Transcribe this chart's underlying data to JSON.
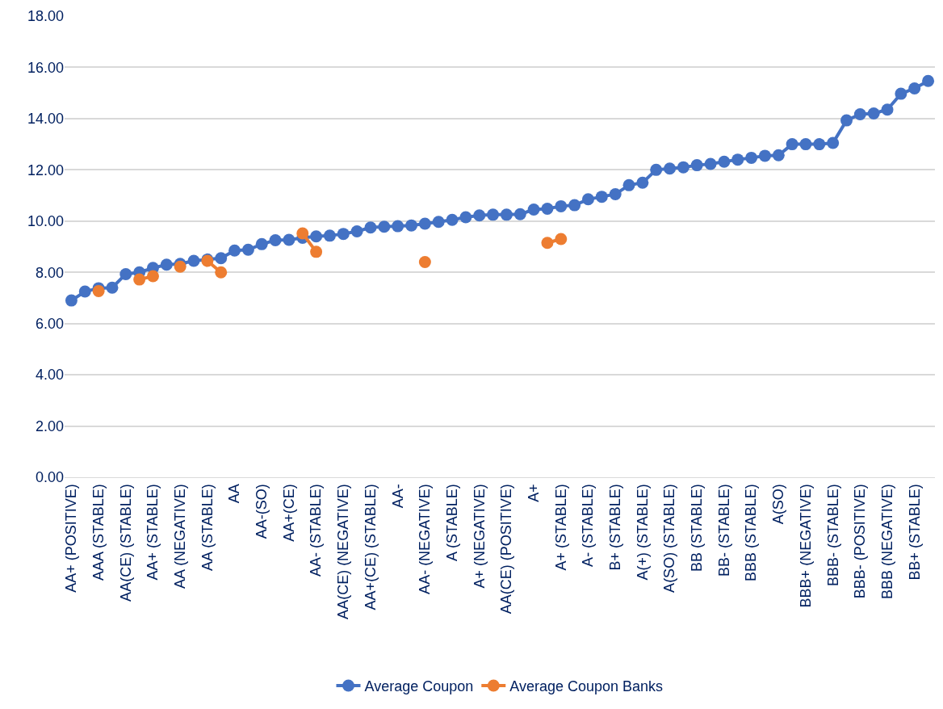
{
  "chart_data": {
    "type": "line",
    "categories": [
      "AA+ (POSITIVE)",
      null,
      "AAA (STABLE)",
      null,
      "AA(CE) (STABLE)",
      null,
      "AA+ (STABLE)",
      null,
      "AA (NEGATIVE)",
      null,
      "AA (STABLE)",
      null,
      "AA",
      null,
      "AA-(SO)",
      null,
      "AA+(CE)",
      null,
      "AA- (STABLE)",
      null,
      "AA(CE) (NEGATIVE)",
      null,
      "AA+(CE) (STABLE)",
      null,
      "AA-",
      null,
      "AA- (NEGATIVE)",
      null,
      "A (STABLE)",
      null,
      "A+ (NEGATIVE)",
      null,
      "AA(CE) (POSITIVE)",
      null,
      "A+",
      null,
      "A+ (STABLE)",
      null,
      "A- (STABLE)",
      null,
      "B+ (STABLE)",
      null,
      "A(+) (STABLE)",
      null,
      "A(SO) (STABLE)",
      null,
      "BB (STABLE)",
      null,
      "BB- (STABLE)",
      null,
      "BBB (STABLE)",
      null,
      "A(SO)",
      null,
      "BBB+ (NEGATIVE)",
      null,
      "BBB- (STABLE)",
      null,
      "BBB- (POSITIVE)",
      null,
      "BBB (NEGATIVE)",
      null,
      "BB+ (STABLE)",
      null
    ],
    "series": [
      {
        "name": "Average Coupon",
        "color": "#4472c4",
        "values": [
          6.9,
          7.25,
          7.38,
          7.4,
          7.93,
          8.0,
          8.17,
          8.3,
          8.33,
          8.45,
          8.5,
          8.55,
          8.85,
          8.88,
          9.1,
          9.25,
          9.27,
          9.35,
          9.4,
          9.43,
          9.5,
          9.6,
          9.75,
          9.78,
          9.8,
          9.83,
          9.9,
          9.97,
          10.05,
          10.15,
          10.22,
          10.25,
          10.25,
          10.27,
          10.45,
          10.48,
          10.58,
          10.62,
          10.85,
          10.95,
          11.05,
          11.4,
          11.5,
          12.0,
          12.05,
          12.1,
          12.18,
          12.23,
          12.32,
          12.4,
          12.47,
          12.55,
          12.57,
          13.0,
          13.0,
          13.0,
          13.05,
          13.93,
          14.17,
          14.2,
          14.35,
          14.97,
          15.18,
          15.47
        ]
      },
      {
        "name": "Average Coupon Banks",
        "color": "#ed7d31",
        "values": [
          null,
          null,
          7.27,
          null,
          null,
          7.72,
          7.85,
          null,
          8.22,
          null,
          8.45,
          8.0,
          null,
          null,
          null,
          null,
          null,
          9.52,
          8.8,
          null,
          null,
          null,
          null,
          null,
          null,
          null,
          8.4,
          null,
          null,
          null,
          null,
          null,
          null,
          null,
          null,
          9.15,
          9.3,
          null,
          null,
          null,
          null,
          null,
          null,
          null,
          null,
          null,
          null,
          null,
          null,
          null,
          null,
          null,
          null,
          null,
          null,
          null,
          null,
          null,
          null,
          null,
          null,
          null,
          null,
          null
        ]
      }
    ],
    "ylim": [
      0,
      18
    ],
    "yticks": [
      {
        "value": 0,
        "label": "0.00"
      },
      {
        "value": 2,
        "label": "2.00"
      },
      {
        "value": 4,
        "label": "4.00"
      },
      {
        "value": 6,
        "label": "6.00"
      },
      {
        "value": 8,
        "label": "8.00"
      },
      {
        "value": 10,
        "label": "10.00"
      },
      {
        "value": 12,
        "label": "12.00"
      },
      {
        "value": 14,
        "label": "14.00"
      },
      {
        "value": 16,
        "label": "16.00"
      },
      {
        "value": 18,
        "label": "18.00"
      }
    ],
    "grid": "y",
    "legend": "bottom",
    "marker": "circle",
    "line_style": "solid"
  }
}
